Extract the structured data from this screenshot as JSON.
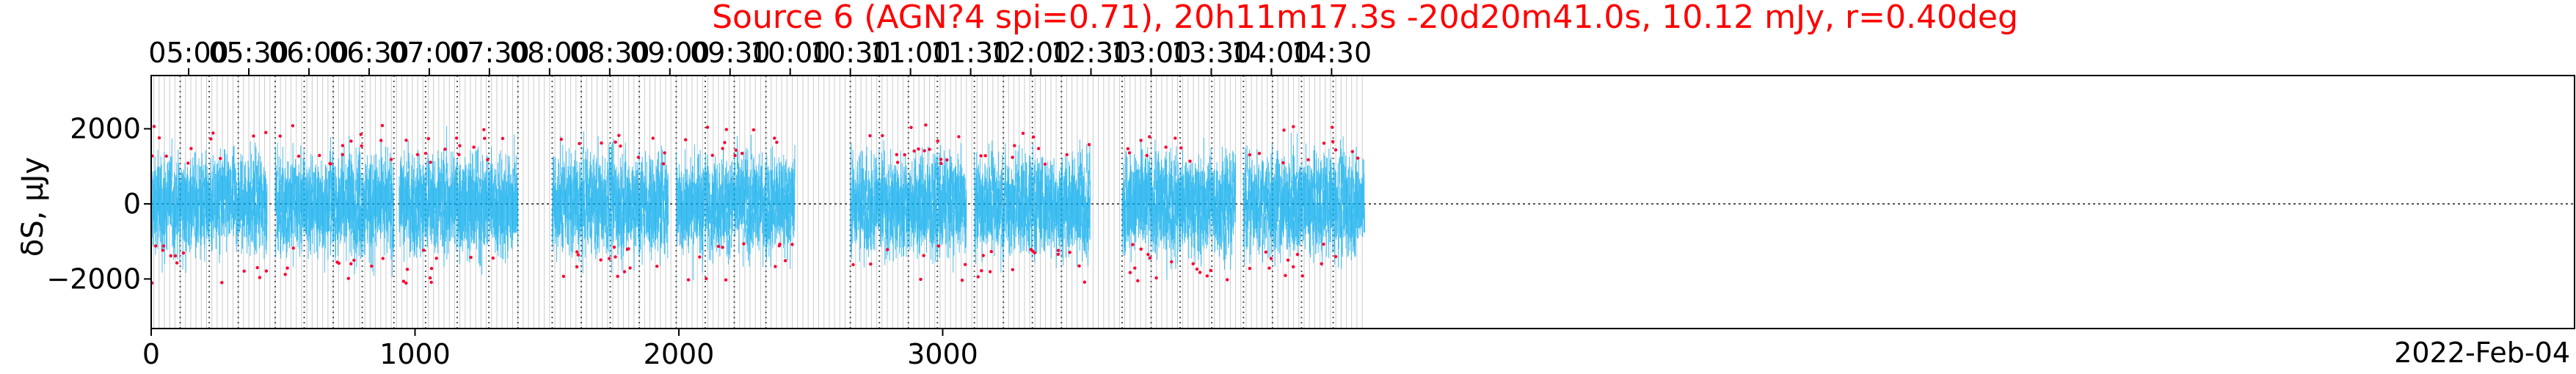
{
  "chart_data": {
    "type": "scatter",
    "title": "Source 6 (AGN?4 spi=0.71), 20h11m17.3s -20d20m41.0s, 10.12 mJy, r=0.40deg",
    "ylabel": "δS, μJy",
    "date_label": "2022-Feb-04",
    "xlim": [
      0,
      4600
    ],
    "ylim": [
      -3400,
      3400
    ],
    "x_ticks": [
      0,
      1000,
      2000,
      3000
    ],
    "y_ticks": [
      -2000,
      0,
      2000
    ],
    "top_ticks": [
      {
        "label": "05:00",
        "x": 142
      },
      {
        "label": "05:30",
        "x": 370
      },
      {
        "label": "06:00",
        "x": 598
      },
      {
        "label": "06:30",
        "x": 826
      },
      {
        "label": "07:00",
        "x": 1054
      },
      {
        "label": "07:30",
        "x": 1282
      },
      {
        "label": "08:00",
        "x": 1510
      },
      {
        "label": "08:30",
        "x": 1738
      },
      {
        "label": "09:00",
        "x": 1966
      },
      {
        "label": "09:30",
        "x": 2194
      },
      {
        "label": "10:00",
        "x": 2422
      },
      {
        "label": "10:30",
        "x": 2650
      },
      {
        "label": "11:00",
        "x": 2878
      },
      {
        "label": "11:30",
        "x": 3106
      },
      {
        "label": "12:00",
        "x": 3334
      },
      {
        "label": "12:30",
        "x": 3562
      },
      {
        "label": "13:00",
        "x": 3790
      },
      {
        "label": "13:30",
        "x": 4018
      },
      {
        "label": "14:00",
        "x": 4246
      },
      {
        "label": "14:30",
        "x": 4474
      }
    ],
    "segments": [
      [
        0,
        440
      ],
      [
        470,
        920
      ],
      [
        940,
        1390
      ],
      [
        1520,
        1960
      ],
      [
        1990,
        2440
      ],
      [
        2650,
        3090
      ],
      [
        3120,
        3560
      ],
      [
        3680,
        4110
      ],
      [
        4140,
        4600
      ]
    ],
    "scan_boundaries": [
      110,
      220,
      330,
      470,
      580,
      690,
      800,
      920,
      1040,
      1160,
      1280,
      1390,
      1520,
      1630,
      1740,
      1850,
      1990,
      2100,
      2210,
      2330,
      2650,
      2760,
      2870,
      2980,
      3120,
      3230,
      3340,
      3450,
      3680,
      3790,
      3900,
      4020,
      4140,
      4250,
      4360,
      4480
    ],
    "rms": 480,
    "colors": {
      "data": "#00aaee",
      "outlier": "#ff0033",
      "zero_line": "#555555",
      "grid": "#cccccc",
      "scan": "#555555",
      "title": "#ff0000"
    }
  }
}
